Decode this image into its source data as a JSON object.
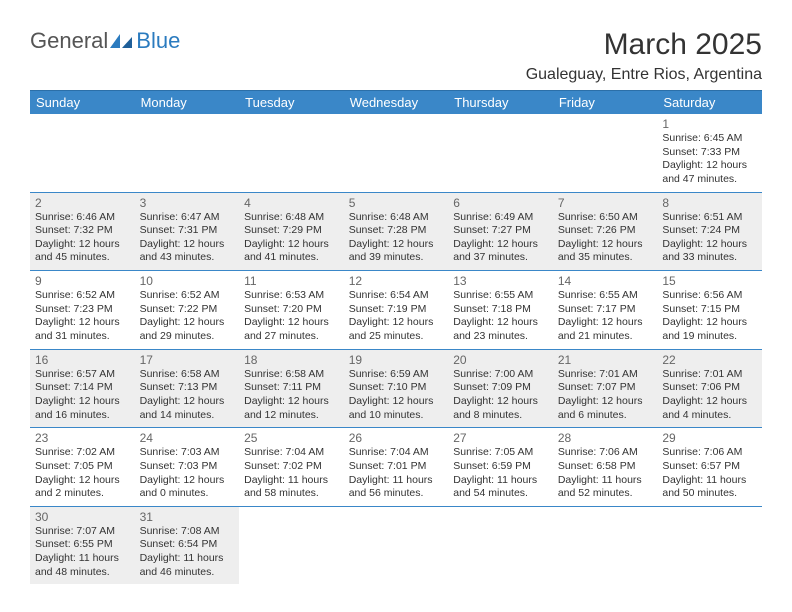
{
  "logo": {
    "text1": "General",
    "text2": "Blue"
  },
  "title": "March 2025",
  "location": "Gualeguay, Entre Rios, Argentina",
  "colors": {
    "header_bg": "#3a87c8",
    "header_text": "#ffffff",
    "row_border": "#3a87c8",
    "shaded_bg": "#eeeeee",
    "logo_blue": "#2b7bbf",
    "logo_gray": "#555555"
  },
  "weekdays": [
    "Sunday",
    "Monday",
    "Tuesday",
    "Wednesday",
    "Thursday",
    "Friday",
    "Saturday"
  ],
  "days": [
    {
      "n": "1",
      "sr": "Sunrise: 6:45 AM",
      "ss": "Sunset: 7:33 PM",
      "dl1": "Daylight: 12 hours",
      "dl2": "and 47 minutes."
    },
    {
      "n": "2",
      "sr": "Sunrise: 6:46 AM",
      "ss": "Sunset: 7:32 PM",
      "dl1": "Daylight: 12 hours",
      "dl2": "and 45 minutes."
    },
    {
      "n": "3",
      "sr": "Sunrise: 6:47 AM",
      "ss": "Sunset: 7:31 PM",
      "dl1": "Daylight: 12 hours",
      "dl2": "and 43 minutes."
    },
    {
      "n": "4",
      "sr": "Sunrise: 6:48 AM",
      "ss": "Sunset: 7:29 PM",
      "dl1": "Daylight: 12 hours",
      "dl2": "and 41 minutes."
    },
    {
      "n": "5",
      "sr": "Sunrise: 6:48 AM",
      "ss": "Sunset: 7:28 PM",
      "dl1": "Daylight: 12 hours",
      "dl2": "and 39 minutes."
    },
    {
      "n": "6",
      "sr": "Sunrise: 6:49 AM",
      "ss": "Sunset: 7:27 PM",
      "dl1": "Daylight: 12 hours",
      "dl2": "and 37 minutes."
    },
    {
      "n": "7",
      "sr": "Sunrise: 6:50 AM",
      "ss": "Sunset: 7:26 PM",
      "dl1": "Daylight: 12 hours",
      "dl2": "and 35 minutes."
    },
    {
      "n": "8",
      "sr": "Sunrise: 6:51 AM",
      "ss": "Sunset: 7:24 PM",
      "dl1": "Daylight: 12 hours",
      "dl2": "and 33 minutes."
    },
    {
      "n": "9",
      "sr": "Sunrise: 6:52 AM",
      "ss": "Sunset: 7:23 PM",
      "dl1": "Daylight: 12 hours",
      "dl2": "and 31 minutes."
    },
    {
      "n": "10",
      "sr": "Sunrise: 6:52 AM",
      "ss": "Sunset: 7:22 PM",
      "dl1": "Daylight: 12 hours",
      "dl2": "and 29 minutes."
    },
    {
      "n": "11",
      "sr": "Sunrise: 6:53 AM",
      "ss": "Sunset: 7:20 PM",
      "dl1": "Daylight: 12 hours",
      "dl2": "and 27 minutes."
    },
    {
      "n": "12",
      "sr": "Sunrise: 6:54 AM",
      "ss": "Sunset: 7:19 PM",
      "dl1": "Daylight: 12 hours",
      "dl2": "and 25 minutes."
    },
    {
      "n": "13",
      "sr": "Sunrise: 6:55 AM",
      "ss": "Sunset: 7:18 PM",
      "dl1": "Daylight: 12 hours",
      "dl2": "and 23 minutes."
    },
    {
      "n": "14",
      "sr": "Sunrise: 6:55 AM",
      "ss": "Sunset: 7:17 PM",
      "dl1": "Daylight: 12 hours",
      "dl2": "and 21 minutes."
    },
    {
      "n": "15",
      "sr": "Sunrise: 6:56 AM",
      "ss": "Sunset: 7:15 PM",
      "dl1": "Daylight: 12 hours",
      "dl2": "and 19 minutes."
    },
    {
      "n": "16",
      "sr": "Sunrise: 6:57 AM",
      "ss": "Sunset: 7:14 PM",
      "dl1": "Daylight: 12 hours",
      "dl2": "and 16 minutes."
    },
    {
      "n": "17",
      "sr": "Sunrise: 6:58 AM",
      "ss": "Sunset: 7:13 PM",
      "dl1": "Daylight: 12 hours",
      "dl2": "and 14 minutes."
    },
    {
      "n": "18",
      "sr": "Sunrise: 6:58 AM",
      "ss": "Sunset: 7:11 PM",
      "dl1": "Daylight: 12 hours",
      "dl2": "and 12 minutes."
    },
    {
      "n": "19",
      "sr": "Sunrise: 6:59 AM",
      "ss": "Sunset: 7:10 PM",
      "dl1": "Daylight: 12 hours",
      "dl2": "and 10 minutes."
    },
    {
      "n": "20",
      "sr": "Sunrise: 7:00 AM",
      "ss": "Sunset: 7:09 PM",
      "dl1": "Daylight: 12 hours",
      "dl2": "and 8 minutes."
    },
    {
      "n": "21",
      "sr": "Sunrise: 7:01 AM",
      "ss": "Sunset: 7:07 PM",
      "dl1": "Daylight: 12 hours",
      "dl2": "and 6 minutes."
    },
    {
      "n": "22",
      "sr": "Sunrise: 7:01 AM",
      "ss": "Sunset: 7:06 PM",
      "dl1": "Daylight: 12 hours",
      "dl2": "and 4 minutes."
    },
    {
      "n": "23",
      "sr": "Sunrise: 7:02 AM",
      "ss": "Sunset: 7:05 PM",
      "dl1": "Daylight: 12 hours",
      "dl2": "and 2 minutes."
    },
    {
      "n": "24",
      "sr": "Sunrise: 7:03 AM",
      "ss": "Sunset: 7:03 PM",
      "dl1": "Daylight: 12 hours",
      "dl2": "and 0 minutes."
    },
    {
      "n": "25",
      "sr": "Sunrise: 7:04 AM",
      "ss": "Sunset: 7:02 PM",
      "dl1": "Daylight: 11 hours",
      "dl2": "and 58 minutes."
    },
    {
      "n": "26",
      "sr": "Sunrise: 7:04 AM",
      "ss": "Sunset: 7:01 PM",
      "dl1": "Daylight: 11 hours",
      "dl2": "and 56 minutes."
    },
    {
      "n": "27",
      "sr": "Sunrise: 7:05 AM",
      "ss": "Sunset: 6:59 PM",
      "dl1": "Daylight: 11 hours",
      "dl2": "and 54 minutes."
    },
    {
      "n": "28",
      "sr": "Sunrise: 7:06 AM",
      "ss": "Sunset: 6:58 PM",
      "dl1": "Daylight: 11 hours",
      "dl2": "and 52 minutes."
    },
    {
      "n": "29",
      "sr": "Sunrise: 7:06 AM",
      "ss": "Sunset: 6:57 PM",
      "dl1": "Daylight: 11 hours",
      "dl2": "and 50 minutes."
    },
    {
      "n": "30",
      "sr": "Sunrise: 7:07 AM",
      "ss": "Sunset: 6:55 PM",
      "dl1": "Daylight: 11 hours",
      "dl2": "and 48 minutes."
    },
    {
      "n": "31",
      "sr": "Sunrise: 7:08 AM",
      "ss": "Sunset: 6:54 PM",
      "dl1": "Daylight: 11 hours",
      "dl2": "and 46 minutes."
    }
  ]
}
